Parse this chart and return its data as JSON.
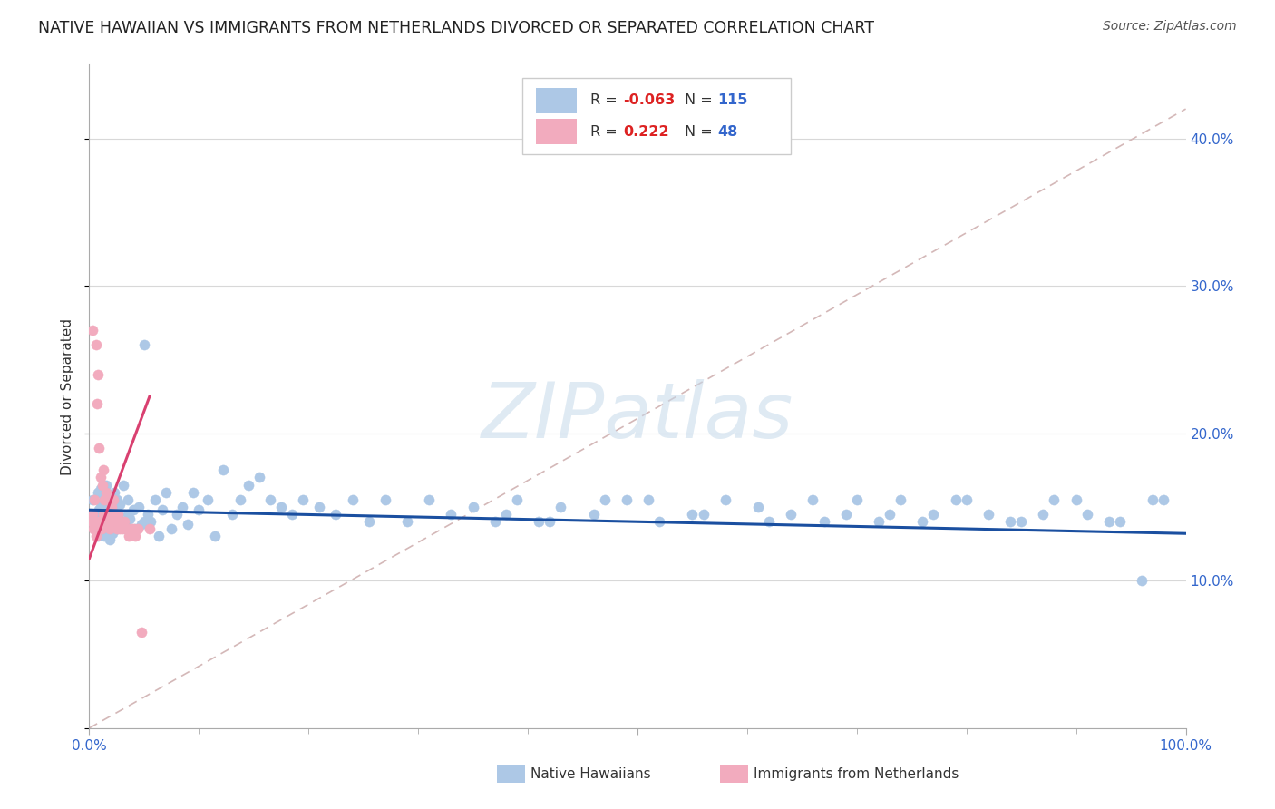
{
  "title": "NATIVE HAWAIIAN VS IMMIGRANTS FROM NETHERLANDS DIVORCED OR SEPARATED CORRELATION CHART",
  "source_text": "Source: ZipAtlas.com",
  "ylabel": "Divorced or Separated",
  "xlim": [
    0.0,
    1.0
  ],
  "ylim": [
    0.0,
    0.45
  ],
  "blue_R": "-0.063",
  "blue_N": "115",
  "pink_R": "0.222",
  "pink_N": "48",
  "blue_color": "#adc8e6",
  "pink_color": "#f2abbe",
  "blue_line_color": "#1a4fa0",
  "pink_line_color": "#d94070",
  "diagonal_color": "#d4b8b8",
  "watermark": "ZIPatlas",
  "legend_label_blue": "Native Hawaiians",
  "legend_label_pink": "Immigrants from Netherlands",
  "blue_x": [
    0.003,
    0.005,
    0.006,
    0.008,
    0.008,
    0.009,
    0.01,
    0.01,
    0.01,
    0.012,
    0.012,
    0.013,
    0.014,
    0.015,
    0.015,
    0.016,
    0.017,
    0.018,
    0.019,
    0.02,
    0.02,
    0.021,
    0.022,
    0.023,
    0.025,
    0.026,
    0.027,
    0.028,
    0.03,
    0.031,
    0.033,
    0.035,
    0.037,
    0.04,
    0.042,
    0.045,
    0.048,
    0.05,
    0.053,
    0.056,
    0.06,
    0.063,
    0.067,
    0.07,
    0.075,
    0.08,
    0.085,
    0.09,
    0.095,
    0.1,
    0.108,
    0.115,
    0.122,
    0.13,
    0.138,
    0.145,
    0.155,
    0.165,
    0.175,
    0.185,
    0.195,
    0.21,
    0.225,
    0.24,
    0.255,
    0.27,
    0.29,
    0.31,
    0.33,
    0.35,
    0.37,
    0.39,
    0.41,
    0.43,
    0.46,
    0.49,
    0.52,
    0.55,
    0.58,
    0.61,
    0.64,
    0.67,
    0.7,
    0.73,
    0.76,
    0.79,
    0.82,
    0.85,
    0.88,
    0.91,
    0.94,
    0.97,
    0.38,
    0.42,
    0.47,
    0.51,
    0.56,
    0.62,
    0.66,
    0.69,
    0.72,
    0.74,
    0.77,
    0.8,
    0.84,
    0.87,
    0.9,
    0.93,
    0.96,
    0.98,
    0.005,
    0.015,
    0.025,
    0.035,
    0.05
  ],
  "blue_y": [
    0.155,
    0.14,
    0.145,
    0.13,
    0.16,
    0.148,
    0.135,
    0.15,
    0.162,
    0.14,
    0.152,
    0.158,
    0.13,
    0.145,
    0.165,
    0.138,
    0.143,
    0.15,
    0.128,
    0.14,
    0.155,
    0.132,
    0.148,
    0.16,
    0.135,
    0.145,
    0.138,
    0.152,
    0.14,
    0.165,
    0.135,
    0.155,
    0.142,
    0.148,
    0.135,
    0.15,
    0.138,
    0.26,
    0.145,
    0.14,
    0.155,
    0.13,
    0.148,
    0.16,
    0.135,
    0.145,
    0.15,
    0.138,
    0.16,
    0.148,
    0.155,
    0.13,
    0.175,
    0.145,
    0.155,
    0.165,
    0.17,
    0.155,
    0.15,
    0.145,
    0.155,
    0.15,
    0.145,
    0.155,
    0.14,
    0.155,
    0.14,
    0.155,
    0.145,
    0.15,
    0.14,
    0.155,
    0.14,
    0.15,
    0.145,
    0.155,
    0.14,
    0.145,
    0.155,
    0.15,
    0.145,
    0.14,
    0.155,
    0.145,
    0.14,
    0.155,
    0.145,
    0.14,
    0.155,
    0.145,
    0.14,
    0.155,
    0.145,
    0.14,
    0.155,
    0.155,
    0.145,
    0.14,
    0.155,
    0.145,
    0.14,
    0.155,
    0.145,
    0.155,
    0.14,
    0.145,
    0.155,
    0.14,
    0.1,
    0.155,
    0.145,
    0.14,
    0.155,
    0.145,
    0.14
  ],
  "pink_x": [
    0.002,
    0.003,
    0.003,
    0.004,
    0.005,
    0.005,
    0.006,
    0.006,
    0.007,
    0.007,
    0.008,
    0.008,
    0.009,
    0.009,
    0.01,
    0.01,
    0.011,
    0.012,
    0.012,
    0.013,
    0.013,
    0.014,
    0.015,
    0.015,
    0.016,
    0.017,
    0.018,
    0.018,
    0.019,
    0.02,
    0.021,
    0.022,
    0.023,
    0.024,
    0.025,
    0.026,
    0.027,
    0.028,
    0.03,
    0.032,
    0.034,
    0.036,
    0.038,
    0.04,
    0.042,
    0.044,
    0.048,
    0.055
  ],
  "pink_y": [
    0.14,
    0.145,
    0.27,
    0.135,
    0.14,
    0.155,
    0.13,
    0.26,
    0.135,
    0.22,
    0.14,
    0.24,
    0.135,
    0.19,
    0.14,
    0.17,
    0.135,
    0.165,
    0.14,
    0.175,
    0.145,
    0.155,
    0.14,
    0.16,
    0.155,
    0.145,
    0.14,
    0.155,
    0.135,
    0.15,
    0.145,
    0.155,
    0.14,
    0.145,
    0.135,
    0.145,
    0.14,
    0.135,
    0.135,
    0.14,
    0.135,
    0.13,
    0.135,
    0.135,
    0.13,
    0.135,
    0.065,
    0.135
  ]
}
